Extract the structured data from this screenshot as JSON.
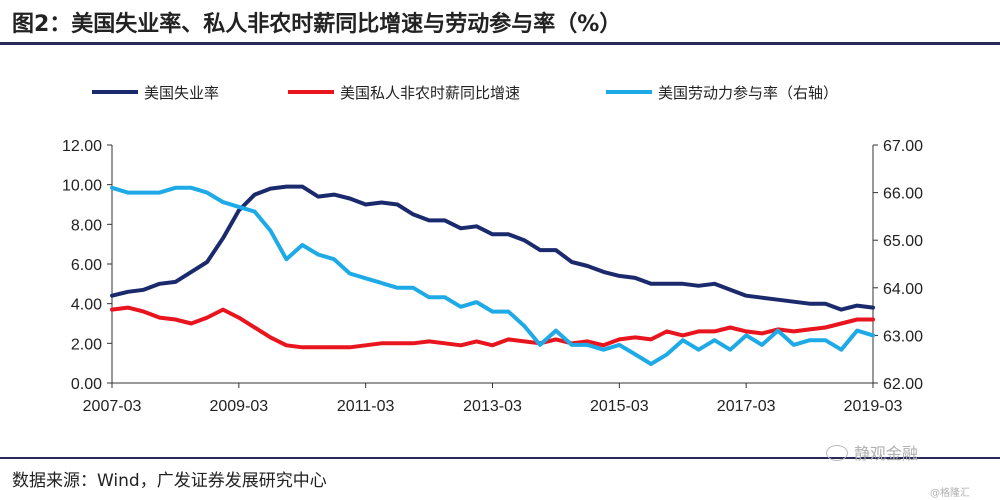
{
  "header": {
    "title": "图2：美国失业率、私人非农时薪同比增速与劳动参与率（%）"
  },
  "footer": {
    "source": "数据来源：Wind，广发证券发展研究中心"
  },
  "watermark": {
    "text": "静观金融",
    "sub": "@格隆汇"
  },
  "chart_data": {
    "type": "line",
    "x": [
      "2007-03",
      "2007-06",
      "2007-09",
      "2007-12",
      "2008-03",
      "2008-06",
      "2008-09",
      "2008-12",
      "2009-03",
      "2009-06",
      "2009-09",
      "2009-12",
      "2010-03",
      "2010-06",
      "2010-09",
      "2010-12",
      "2011-03",
      "2011-06",
      "2011-09",
      "2011-12",
      "2012-03",
      "2012-06",
      "2012-09",
      "2012-12",
      "2013-03",
      "2013-06",
      "2013-09",
      "2013-12",
      "2014-03",
      "2014-06",
      "2014-09",
      "2014-12",
      "2015-03",
      "2015-06",
      "2015-09",
      "2015-12",
      "2016-03",
      "2016-06",
      "2016-09",
      "2016-12",
      "2017-03",
      "2017-06",
      "2017-09",
      "2017-12",
      "2018-03",
      "2018-06",
      "2018-09",
      "2018-12",
      "2019-03"
    ],
    "x_ticks": [
      "2007-03",
      "2009-03",
      "2011-03",
      "2013-03",
      "2015-03",
      "2017-03",
      "2019-03"
    ],
    "y_left": {
      "range": [
        0,
        12
      ],
      "ticks": [
        "0.00",
        "2.00",
        "4.00",
        "6.00",
        "8.00",
        "10.00",
        "12.00"
      ]
    },
    "y_right": {
      "range": [
        62,
        67
      ],
      "ticks": [
        "62.00",
        "63.00",
        "64.00",
        "65.00",
        "66.00",
        "67.00"
      ]
    },
    "series": [
      {
        "name": "美国失业率",
        "axis": "left",
        "color": "#1a2a6c",
        "values": [
          4.4,
          4.6,
          4.7,
          5.0,
          5.1,
          5.6,
          6.1,
          7.3,
          8.7,
          9.5,
          9.8,
          9.9,
          9.9,
          9.4,
          9.5,
          9.3,
          9.0,
          9.1,
          9.0,
          8.5,
          8.2,
          8.2,
          7.8,
          7.9,
          7.5,
          7.5,
          7.2,
          6.7,
          6.7,
          6.1,
          5.9,
          5.6,
          5.4,
          5.3,
          5.0,
          5.0,
          5.0,
          4.9,
          5.0,
          4.7,
          4.4,
          4.3,
          4.2,
          4.1,
          4.0,
          4.0,
          3.7,
          3.9,
          3.8
        ]
      },
      {
        "name": "美国私人非农时薪同比增速",
        "axis": "left",
        "color": "#e8141e",
        "values": [
          3.7,
          3.8,
          3.6,
          3.3,
          3.2,
          3.0,
          3.3,
          3.7,
          3.3,
          2.8,
          2.3,
          1.9,
          1.8,
          1.8,
          1.8,
          1.8,
          1.9,
          2.0,
          2.0,
          2.0,
          2.1,
          2.0,
          1.9,
          2.1,
          1.9,
          2.2,
          2.1,
          2.0,
          2.2,
          2.0,
          2.1,
          1.9,
          2.2,
          2.3,
          2.2,
          2.6,
          2.4,
          2.6,
          2.6,
          2.8,
          2.6,
          2.5,
          2.7,
          2.6,
          2.7,
          2.8,
          3.0,
          3.2,
          3.2
        ]
      },
      {
        "name": "美国劳动力参与率（右轴）",
        "axis": "right",
        "color": "#1eaae6",
        "values": [
          66.1,
          66.0,
          66.0,
          66.0,
          66.1,
          66.1,
          66.0,
          65.8,
          65.7,
          65.6,
          65.2,
          64.6,
          64.9,
          64.7,
          64.6,
          64.3,
          64.2,
          64.1,
          64.0,
          64.0,
          63.8,
          63.8,
          63.6,
          63.7,
          63.5,
          63.5,
          63.2,
          62.8,
          63.1,
          62.8,
          62.8,
          62.7,
          62.8,
          62.6,
          62.4,
          62.6,
          62.9,
          62.7,
          62.9,
          62.7,
          63.0,
          62.8,
          63.1,
          62.8,
          62.9,
          62.9,
          62.7,
          63.1,
          63.0
        ]
      }
    ]
  }
}
